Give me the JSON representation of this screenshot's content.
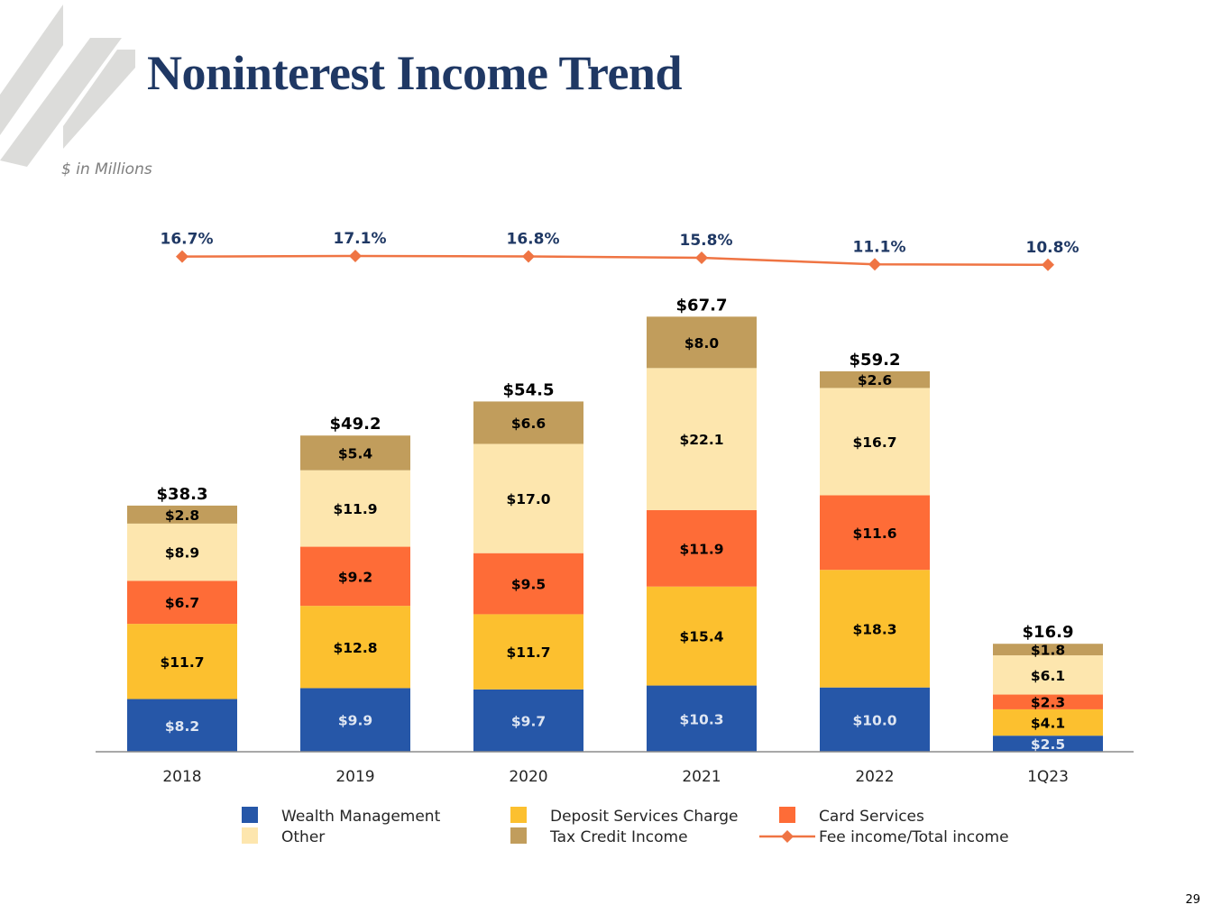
{
  "title": "Noninterest Income Trend",
  "subtitle": "$ in Millions",
  "page_number": "29",
  "chart_data": {
    "type": "bar",
    "stacked": true,
    "categories": [
      "2018",
      "2019",
      "2020",
      "2021",
      "2022",
      "1Q23"
    ],
    "series": [
      {
        "name": "Wealth Management",
        "color": "#2657a8",
        "label_color": "#dfe6f2",
        "values": [
          8.2,
          9.9,
          9.7,
          10.3,
          10.0,
          2.5
        ],
        "labels": [
          "$8.2",
          "$9.9",
          "$9.7",
          "$10.3",
          "$10.0",
          "$2.5"
        ]
      },
      {
        "name": "Deposit Services Charge",
        "color": "#fcc02f",
        "label_color": "#000000",
        "values": [
          11.7,
          12.8,
          11.7,
          15.4,
          18.3,
          4.1
        ],
        "labels": [
          "$11.7",
          "$12.8",
          "$11.7",
          "$15.4",
          "$18.3",
          "$4.1"
        ]
      },
      {
        "name": "Card Services",
        "color": "#fe6c37",
        "label_color": "#000000",
        "values": [
          6.7,
          9.2,
          9.5,
          11.9,
          11.6,
          2.3
        ],
        "labels": [
          "$6.7",
          "$9.2",
          "$9.5",
          "$11.9",
          "$11.6",
          "$2.3"
        ]
      },
      {
        "name": "Other",
        "color": "#fde6ae",
        "label_color": "#000000",
        "values": [
          8.9,
          11.9,
          17.0,
          22.1,
          16.7,
          6.1
        ],
        "labels": [
          "$8.9",
          "$11.9",
          "$17.0",
          "$22.1",
          "$16.7",
          "$6.1"
        ]
      },
      {
        "name": "Tax Credit Income",
        "color": "#c19d5c",
        "label_color": "#000000",
        "values": [
          2.8,
          5.4,
          6.6,
          8.0,
          2.6,
          1.8
        ],
        "labels": [
          "$2.8",
          "$5.4",
          "$6.6",
          "$8.0",
          "$2.6",
          "$1.8"
        ]
      }
    ],
    "totals": [
      38.3,
      49.2,
      54.5,
      67.7,
      59.2,
      16.9
    ],
    "total_labels": [
      "$38.3",
      "$49.2",
      "$54.5",
      "$67.7",
      "$59.2",
      "$16.9"
    ],
    "line_series": {
      "name": "Fee income/Total income",
      "color": "#ef7443",
      "values": [
        16.7,
        17.1,
        16.8,
        15.8,
        11.1,
        10.8
      ],
      "labels": [
        "16.7%",
        "17.1%",
        "16.8%",
        "15.8%",
        "11.1%",
        "10.8%"
      ]
    },
    "ylim": [
      0,
      70
    ],
    "xlabel": "",
    "ylabel": "",
    "grid": false,
    "legend_position": "bottom",
    "legend_order": [
      "Wealth Management",
      "Deposit Services Charge",
      "Card Services",
      "Other",
      "Tax Credit Income",
      "Fee income/Total income"
    ]
  }
}
